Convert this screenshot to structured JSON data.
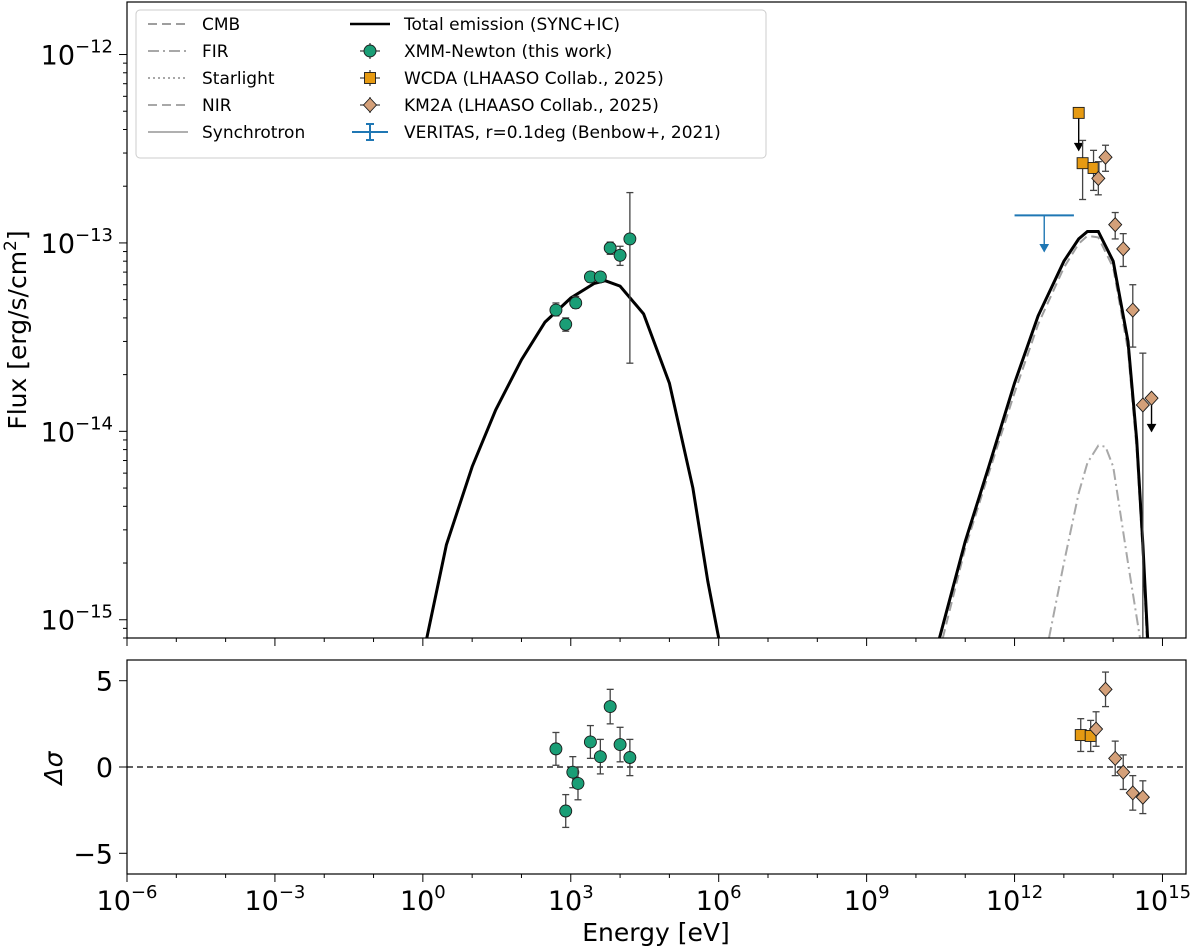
{
  "chart_data": {
    "type": "line",
    "x_axis": {
      "label": "Energy [eV]",
      "scale": "log",
      "range": [
        1e-06,
        3000000000000000.0
      ],
      "ticks": [
        {
          "value": 1e-06,
          "base": "10",
          "exp": "−6"
        },
        {
          "value": 0.001,
          "base": "10",
          "exp": "−3"
        },
        {
          "value": 1,
          "base": "10",
          "exp": "0"
        },
        {
          "value": 1000,
          "base": "10",
          "exp": "3"
        },
        {
          "value": 1000000,
          "base": "10",
          "exp": "6"
        },
        {
          "value": 1000000000,
          "base": "10",
          "exp": "9"
        },
        {
          "value": 1000000000000,
          "base": "10",
          "exp": "12"
        },
        {
          "value": 1000000000000000,
          "base": "10",
          "exp": "15"
        }
      ]
    },
    "top_panel": {
      "ylabel": "Flux [erg/s/cm²]",
      "yscale": "log",
      "ylim": [
        8e-16,
        1.9e-12
      ],
      "yticks": [
        {
          "value": 1e-12,
          "base": "10",
          "exp": "−12"
        },
        {
          "value": 1e-13,
          "base": "10",
          "exp": "−13"
        },
        {
          "value": 1e-14,
          "base": "10",
          "exp": "−14"
        },
        {
          "value": 1e-15,
          "base": "10",
          "exp": "−15"
        }
      ],
      "models": [
        {
          "name": "Total emission (SYNC+IC)",
          "style": "solid",
          "color": "#000000",
          "segments": [
            [
              [
                1.2,
                8e-16
              ],
              [
                3,
                2.5e-15
              ],
              [
                10,
                6.5e-15
              ],
              [
                30,
                1.3e-14
              ],
              [
                100,
                2.4e-14
              ],
              [
                300,
                3.8e-14
              ],
              [
                1000,
                5.1e-14
              ],
              [
                3000,
                6.1e-14
              ],
              [
                5000,
                6.3e-14
              ],
              [
                10000,
                5.9e-14
              ],
              [
                30000,
                4.2e-14
              ],
              [
                100000,
                1.8e-14
              ],
              [
                300000,
                5e-15
              ],
              [
                600000,
                1.6e-15
              ],
              [
                1000000,
                8e-16
              ]
            ],
            [
              [
                30000000000.0,
                8e-16
              ],
              [
                100000000000.0,
                2.6e-15
              ],
              [
                300000000000.0,
                6.5e-15
              ],
              [
                1000000000000.0,
                1.8e-14
              ],
              [
                3000000000000.0,
                4.1e-14
              ],
              [
                10000000000000.0,
                8e-14
              ],
              [
                20000000000000.0,
                1.05e-13
              ],
              [
                30000000000000.0,
                1.15e-13
              ],
              [
                50000000000000.0,
                1.15e-13
              ],
              [
                100000000000000.0,
                8e-14
              ],
              [
                200000000000000.0,
                3e-14
              ],
              [
                300000000000000.0,
                9e-15
              ],
              [
                400000000000000.0,
                2.5e-15
              ],
              [
                500000000000000.0,
                8e-16
              ]
            ]
          ]
        },
        {
          "name": "CMB",
          "style": "dashed",
          "color": "#9e9e9e",
          "segments": [
            [
              [
                35000000000.0,
                8e-16
              ],
              [
                100000000000.0,
                2.4e-15
              ],
              [
                300000000000.0,
                6e-15
              ],
              [
                1000000000000.0,
                1.6e-14
              ],
              [
                3000000000000.0,
                3.7e-14
              ],
              [
                10000000000000.0,
                7.4e-14
              ],
              [
                20000000000000.0,
                9.9e-14
              ],
              [
                30000000000000.0,
                1.09e-13
              ],
              [
                50000000000000.0,
                1.07e-13
              ],
              [
                100000000000000.0,
                7.4e-14
              ],
              [
                200000000000000.0,
                2.7e-14
              ],
              [
                300000000000000.0,
                8e-15
              ],
              [
                400000000000000.0,
                2.2e-15
              ],
              [
                480000000000000.0,
                8e-16
              ]
            ]
          ]
        },
        {
          "name": "FIR",
          "style": "dashdot",
          "color": "#a8a8a8",
          "segments": [
            [
              [
                5000000000000.0,
                8e-16
              ],
              [
                10000000000000.0,
                2e-15
              ],
              [
                20000000000000.0,
                4.7e-15
              ],
              [
                30000000000000.0,
                6.8e-15
              ],
              [
                50000000000000.0,
                8.4e-15
              ],
              [
                70000000000000.0,
                8.3e-15
              ],
              [
                100000000000000.0,
                6.5e-15
              ],
              [
                200000000000000.0,
                2e-15
              ],
              [
                350000000000000.0,
                8e-16
              ]
            ]
          ]
        },
        {
          "name": "Starlight",
          "style": "dotted",
          "color": "#a8a8a8",
          "segments": []
        },
        {
          "name": "NIR",
          "style": "dashed",
          "color": "#a8a8a8",
          "segments": []
        },
        {
          "name": "Synchrotron",
          "style": "solid",
          "color": "#b0b0b0",
          "segments": []
        }
      ],
      "series": [
        {
          "name": "XMM-Newton (this work)",
          "marker": "circle",
          "color": "#1a9e76",
          "points": [
            {
              "x": 500,
              "y": 4.4e-14,
              "lo": 4.1e-14,
              "hi": 4.8e-14
            },
            {
              "x": 790,
              "y": 3.7e-14,
              "lo": 3.4e-14,
              "hi": 4e-14
            },
            {
              "x": 1260,
              "y": 4.8e-14,
              "lo": 4.5e-14,
              "hi": 5.2e-14
            },
            {
              "x": 2500,
              "y": 6.6e-14,
              "lo": 6.2e-14,
              "hi": 7e-14
            },
            {
              "x": 3980,
              "y": 6.6e-14,
              "lo": 6.2e-14,
              "hi": 7e-14
            },
            {
              "x": 6300,
              "y": 9.4e-14,
              "lo": 8.7e-14,
              "hi": 1.01e-13
            },
            {
              "x": 10000,
              "y": 8.6e-14,
              "lo": 7.6e-14,
              "hi": 9.6e-14
            },
            {
              "x": 15800,
              "y": 1.05e-13,
              "lo": 2.3e-14,
              "hi": 1.85e-13
            }
          ]
        },
        {
          "name": "WCDA (LHAASO Collab., 2025)",
          "marker": "square",
          "color": "#e69a12",
          "points": [
            {
              "x": 20000000000000.0,
              "y": 4.9e-13,
              "upper_limit": true,
              "ul_to": 3.1e-13
            },
            {
              "x": 24000000000000.0,
              "y": 2.65e-13,
              "lo": 1.7e-13,
              "hi": 3.5e-13
            },
            {
              "x": 40000000000000.0,
              "y": 2.5e-13,
              "lo": 1.9e-13,
              "hi": 3.1e-13
            }
          ]
        },
        {
          "name": "KM2A (LHAASO Collab., 2025)",
          "marker": "diamond",
          "color": "#d4a079",
          "points": [
            {
              "x": 50000000000000.0,
              "y": 2.2e-13,
              "lo": 1.8e-13,
              "hi": 2.7e-13
            },
            {
              "x": 70000000000000.0,
              "y": 2.85e-13,
              "lo": 2.4e-13,
              "hi": 3.3e-13
            },
            {
              "x": 110000000000000.0,
              "y": 1.25e-13,
              "lo": 1.05e-13,
              "hi": 1.45e-13
            },
            {
              "x": 160000000000000.0,
              "y": 9.3e-14,
              "lo": 7.5e-14,
              "hi": 1.12e-13
            },
            {
              "x": 250000000000000.0,
              "y": 4.4e-14,
              "lo": 2.8e-14,
              "hi": 6e-14
            },
            {
              "x": 400000000000000.0,
              "y": 1.38e-14,
              "lo": 8e-16,
              "hi": 2.6e-14
            },
            {
              "x": 600000000000000.0,
              "y": 1.5e-14,
              "upper_limit": true,
              "ul_to": 1e-14
            }
          ]
        },
        {
          "name": "VERITAS, r=0.1deg (Benbow+, 2021)",
          "marker": "upper-limit",
          "color": "#1f77b4",
          "points": [
            {
              "x": 4000000000000.0,
              "y": 1.4e-13,
              "upper_limit": true,
              "ul_to": 9e-14,
              "xlo": 1000000000000.0,
              "xhi": 16000000000000.0
            }
          ]
        }
      ],
      "legend": {
        "placement": "top-left",
        "col1": [
          "CMB",
          "FIR",
          "Starlight",
          "NIR",
          "Synchrotron"
        ],
        "col2": [
          "Total emission (SYNC+IC)",
          "XMM-Newton (this work)",
          "WCDA (LHAASO Collab., 2025)",
          "KM2A (LHAASO Collab., 2025)",
          "VERITAS, r=0.1deg (Benbow+, 2021)"
        ]
      }
    },
    "bottom_panel": {
      "ylabel": "Δσ",
      "yscale": "linear",
      "ylim": [
        -6.2,
        6.2
      ],
      "yticks": [
        {
          "value": 5,
          "label": "5"
        },
        {
          "value": 0,
          "label": "0"
        },
        {
          "value": -5,
          "label": "−5"
        }
      ],
      "reference_line": 0,
      "series": [
        {
          "name": "XMM-Newton (this work)",
          "marker": "circle",
          "color": "#1a9e76",
          "points": [
            {
              "x": 500,
              "y": 1.05,
              "lo": 0.1,
              "hi": 2.0
            },
            {
              "x": 790,
              "y": -2.55,
              "lo": -3.5,
              "hi": -1.6
            },
            {
              "x": 1100,
              "y": -0.3,
              "lo": -1.2,
              "hi": 0.6
            },
            {
              "x": 1400,
              "y": -0.95,
              "lo": -1.9,
              "hi": 0.0
            },
            {
              "x": 2500,
              "y": 1.45,
              "lo": 0.5,
              "hi": 2.4
            },
            {
              "x": 3980,
              "y": 0.6,
              "lo": -0.4,
              "hi": 1.6
            },
            {
              "x": 6300,
              "y": 3.5,
              "lo": 2.5,
              "hi": 4.5
            },
            {
              "x": 10000,
              "y": 1.3,
              "lo": 0.3,
              "hi": 2.3
            },
            {
              "x": 15800,
              "y": 0.55,
              "lo": -0.5,
              "hi": 1.6
            }
          ]
        },
        {
          "name": "WCDA (LHAASO Collab., 2025)",
          "marker": "square",
          "color": "#e69a12",
          "points": [
            {
              "x": 22000000000000.0,
              "y": 1.85,
              "lo": 0.9,
              "hi": 2.8
            },
            {
              "x": 35000000000000.0,
              "y": 1.8,
              "lo": 0.9,
              "hi": 2.7
            }
          ]
        },
        {
          "name": "KM2A (LHAASO Collab., 2025)",
          "marker": "diamond",
          "color": "#d4a079",
          "points": [
            {
              "x": 45000000000000.0,
              "y": 2.2,
              "lo": 1.2,
              "hi": 3.2
            },
            {
              "x": 70000000000000.0,
              "y": 4.5,
              "lo": 3.5,
              "hi": 5.5
            },
            {
              "x": 110000000000000.0,
              "y": 0.5,
              "lo": -0.5,
              "hi": 1.5
            },
            {
              "x": 160000000000000.0,
              "y": -0.3,
              "lo": -1.3,
              "hi": 0.7
            },
            {
              "x": 250000000000000.0,
              "y": -1.5,
              "lo": -2.5,
              "hi": -0.5
            },
            {
              "x": 400000000000000.0,
              "y": -1.75,
              "lo": -2.7,
              "hi": -0.8
            }
          ]
        }
      ]
    }
  }
}
